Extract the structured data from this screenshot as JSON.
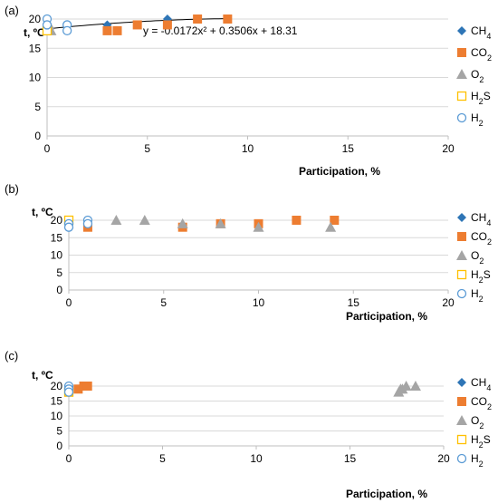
{
  "chart_data": [
    {
      "type": "scatter",
      "panel_label": "(a)",
      "ylabel": "t, ºC",
      "xlabel": "Participation, %",
      "xlim": [
        0,
        20
      ],
      "ylim": [
        0,
        20
      ],
      "xticks": [
        0,
        5,
        10,
        15,
        20
      ],
      "yticks": [
        0,
        5,
        10,
        15,
        20
      ],
      "grid": true,
      "legend": "right",
      "trendline": {
        "equation": "y = -0.0172x² + 0.3506x + 18.31",
        "coefficients": [
          -0.0172,
          0.3506,
          18.31
        ],
        "x_range": [
          0,
          9
        ]
      },
      "series": [
        {
          "name": "CH",
          "sub": "4",
          "marker": "diamond",
          "color": "#2e75b6",
          "points": [
            [
              3,
              19
            ],
            [
              6,
              20
            ]
          ]
        },
        {
          "name": "CO",
          "sub": "2",
          "marker": "square",
          "color": "#ed7d31",
          "points": [
            [
              3,
              18
            ],
            [
              3.5,
              18
            ],
            [
              4.5,
              19
            ],
            [
              6,
              19
            ],
            [
              7.5,
              20
            ],
            [
              9,
              20
            ]
          ]
        },
        {
          "name": "O",
          "sub": "2",
          "marker": "triangle",
          "color": "#a5a5a5",
          "points": [
            [
              0.2,
              18
            ],
            [
              0.1,
              19
            ]
          ]
        },
        {
          "name": "H",
          "sub": "2",
          "suffix": "S",
          "marker": "square-open",
          "color": "#ffc000",
          "points": [
            [
              0,
              18
            ]
          ]
        },
        {
          "name": "H",
          "sub": "2",
          "marker": "circle-open",
          "color": "#5b9bd5",
          "points": [
            [
              0,
              20
            ],
            [
              0,
              19
            ],
            [
              1,
              19
            ],
            [
              1,
              18
            ]
          ]
        }
      ]
    },
    {
      "type": "scatter",
      "panel_label": "(b)",
      "ylabel": "t, ºC",
      "xlabel": "Participation,  %",
      "xlim": [
        0,
        20
      ],
      "ylim": [
        0,
        20
      ],
      "xticks": [
        0,
        5,
        10,
        15,
        20
      ],
      "yticks": [
        0,
        5,
        10,
        15,
        20
      ],
      "grid": true,
      "legend": "right",
      "series": [
        {
          "name": "CH",
          "sub": "4",
          "marker": "diamond",
          "color": "#2e75b6",
          "points": [
            [
              0,
              18
            ]
          ]
        },
        {
          "name": "CO",
          "sub": "2",
          "marker": "square",
          "color": "#ed7d31",
          "points": [
            [
              1,
              18
            ],
            [
              6,
              18
            ],
            [
              8,
              19
            ],
            [
              10,
              19
            ],
            [
              12,
              20
            ],
            [
              14,
              20
            ]
          ]
        },
        {
          "name": "O",
          "sub": "2",
          "marker": "triangle",
          "color": "#a5a5a5",
          "points": [
            [
              2.5,
              20
            ],
            [
              4,
              20
            ],
            [
              6,
              19
            ],
            [
              8,
              19
            ],
            [
              10,
              18
            ],
            [
              13.8,
              18
            ]
          ]
        },
        {
          "name": "H",
          "sub": "2",
          "suffix": "S",
          "marker": "square-open",
          "color": "#ffc000",
          "points": [
            [
              0,
              20
            ]
          ]
        },
        {
          "name": "H",
          "sub": "2",
          "marker": "circle-open",
          "color": "#5b9bd5",
          "points": [
            [
              0,
              19
            ],
            [
              0,
              18
            ],
            [
              1,
              20
            ],
            [
              1,
              19
            ]
          ]
        }
      ]
    },
    {
      "type": "scatter",
      "panel_label": "(c)",
      "ylabel": "t, ºC",
      "xlabel": "Participation, %",
      "xlim": [
        0,
        20
      ],
      "ylim": [
        0,
        20
      ],
      "xticks": [
        0,
        5,
        10,
        15,
        20
      ],
      "yticks": [
        0,
        5,
        10,
        15,
        20
      ],
      "grid": true,
      "legend": "right",
      "series": [
        {
          "name": "CH",
          "sub": "4",
          "marker": "diamond",
          "color": "#2e75b6",
          "points": [
            [
              0,
              19
            ]
          ]
        },
        {
          "name": "CO",
          "sub": "2",
          "marker": "square",
          "color": "#ed7d31",
          "points": [
            [
              0,
              18
            ],
            [
              0.5,
              19
            ],
            [
              0.8,
              20
            ],
            [
              1,
              20
            ]
          ]
        },
        {
          "name": "O",
          "sub": "2",
          "marker": "triangle",
          "color": "#a5a5a5",
          "points": [
            [
              17.6,
              18
            ],
            [
              17.8,
              19
            ],
            [
              18,
              20
            ],
            [
              18.5,
              20
            ],
            [
              17.7,
              19
            ]
          ]
        },
        {
          "name": "H",
          "sub": "2",
          "suffix": "S",
          "marker": "square-open",
          "color": "#ffc000",
          "points": [
            [
              0,
              18
            ]
          ]
        },
        {
          "name": "H",
          "sub": "2",
          "marker": "circle-open",
          "color": "#5b9bd5",
          "points": [
            [
              0,
              20
            ],
            [
              0,
              19
            ],
            [
              0,
              18
            ]
          ]
        }
      ]
    }
  ]
}
